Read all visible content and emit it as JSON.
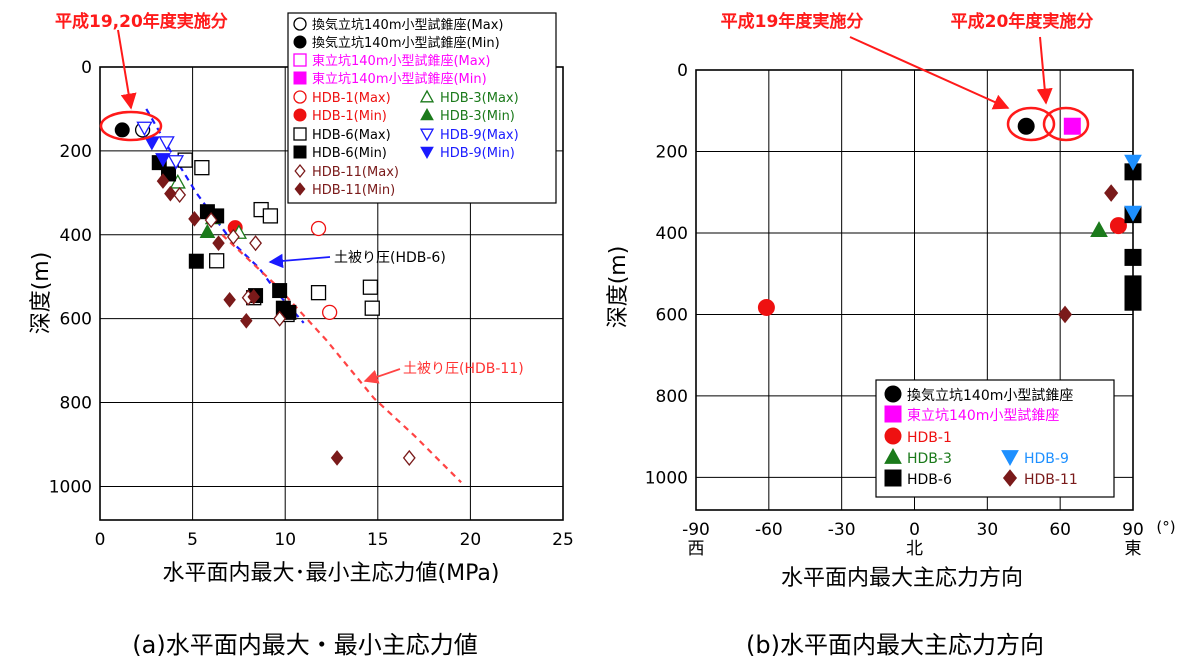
{
  "chart_data": [
    {
      "type": "scatter",
      "xlabel": "水平面内最大･最小主応力値(MPa)",
      "ylabel": "深度(m)",
      "caption": "(a)水平面内最大・最小主応力値",
      "xlim": [
        0,
        25
      ],
      "ylim": [
        1080,
        0
      ],
      "xticks": [
        "0",
        "5",
        "10",
        "15",
        "20",
        "25"
      ],
      "yticks": [
        "0",
        "200",
        "400",
        "600",
        "800",
        "1000"
      ],
      "grid": true,
      "legend_position": "top-right",
      "annotation_top": "平成19,20年度実施分",
      "lines": [
        {
          "name": "土被り圧(HDB-6)",
          "color": "#1a1aff",
          "style": "dashed",
          "points": [
            [
              2.5,
              100
            ],
            [
              3.8,
              200
            ],
            [
              5.2,
              300
            ],
            [
              7.2,
              420
            ],
            [
              8.6,
              480
            ],
            [
              9.6,
              540
            ],
            [
              11.0,
              610
            ]
          ]
        },
        {
          "name": "土被り圧(HDB-11)",
          "color": "#ff4444",
          "style": "dashed",
          "points": [
            [
              6.6,
              400
            ],
            [
              9.5,
              520
            ],
            [
              12.2,
              650
            ],
            [
              14.8,
              790
            ],
            [
              17.0,
              880
            ],
            [
              19.5,
              990
            ]
          ]
        }
      ],
      "series": [
        {
          "name": "換気立坑140m小型試錐座(Max)",
          "marker": "circle-open",
          "color": "#000000",
          "points": [
            [
              2.3,
              150
            ]
          ]
        },
        {
          "name": "換気立坑140m小型試錐座(Min)",
          "marker": "circle-filled",
          "color": "#000000",
          "points": [
            [
              1.2,
              150
            ]
          ]
        },
        {
          "name": "東立坑140m小型試錐座(Max)",
          "marker": "square-open",
          "color": "#ff00ff",
          "points": []
        },
        {
          "name": "東立坑140m小型試錐座(Min)",
          "marker": "square-filled",
          "color": "#ff00ff",
          "points": []
        },
        {
          "name": "HDB-1(Max)",
          "marker": "circle-open",
          "color": "#ee1111",
          "points": [
            [
              11.8,
              385
            ],
            [
              12.4,
              585
            ]
          ]
        },
        {
          "name": "HDB-1(Min)",
          "marker": "circle-filled",
          "color": "#ee1111",
          "points": [
            [
              7.3,
              383
            ]
          ]
        },
        {
          "name": "HDB-3(Max)",
          "marker": "triangle-open",
          "color": "#1b7a1b",
          "points": [
            [
              4.2,
              275
            ],
            [
              6.1,
              360
            ],
            [
              7.5,
              395
            ]
          ]
        },
        {
          "name": "HDB-3(Min)",
          "marker": "triangle-filled",
          "color": "#1b7a1b",
          "points": [
            [
              5.8,
              393
            ]
          ]
        },
        {
          "name": "HDB-6(Max)",
          "marker": "square-open",
          "color": "#000000",
          "points": [
            [
              4.6,
              222
            ],
            [
              5.5,
              240
            ],
            [
              8.7,
              340
            ],
            [
              9.2,
              355
            ],
            [
              6.3,
              462
            ],
            [
              11.8,
              538
            ],
            [
              14.6,
              525
            ],
            [
              14.7,
              575
            ],
            [
              8.3,
              550
            ],
            [
              10.1,
              590
            ]
          ]
        },
        {
          "name": "HDB-6(Min)",
          "marker": "square-filled",
          "color": "#000000",
          "points": [
            [
              3.2,
              228
            ],
            [
              3.7,
              255
            ],
            [
              5.8,
              345
            ],
            [
              6.3,
              355
            ],
            [
              5.2,
              463
            ],
            [
              9.7,
              533
            ],
            [
              8.4,
              545
            ],
            [
              9.9,
              575
            ],
            [
              10.2,
              585
            ]
          ]
        },
        {
          "name": "HDB-9(Max)",
          "marker": "triangle-down-open",
          "color": "#1a1aff",
          "points": [
            [
              2.4,
              145
            ],
            [
              3.6,
              180
            ],
            [
              4.1,
              225
            ]
          ]
        },
        {
          "name": "HDB-9(Min)",
          "marker": "triangle-down-filled",
          "color": "#1a1aff",
          "points": [
            [
              2.8,
              180
            ],
            [
              3.4,
              220
            ]
          ]
        },
        {
          "name": "HDB-11(Max)",
          "marker": "diamond-open",
          "color": "#7a1a1a",
          "points": [
            [
              4.3,
              305
            ],
            [
              6.0,
              365
            ],
            [
              7.2,
              405
            ],
            [
              8.4,
              420
            ],
            [
              9.7,
              600
            ],
            [
              16.7,
              932
            ],
            [
              8.0,
              550
            ]
          ]
        },
        {
          "name": "HDB-11(Min)",
          "marker": "diamond-filled",
          "color": "#7a1a1a",
          "points": [
            [
              3.4,
              272
            ],
            [
              3.8,
              302
            ],
            [
              5.1,
              362
            ],
            [
              6.4,
              420
            ],
            [
              8.3,
              548
            ],
            [
              7.0,
              555
            ],
            [
              7.9,
              605
            ],
            [
              12.8,
              932
            ]
          ]
        }
      ]
    },
    {
      "type": "scatter",
      "xlabel": "水平面内最大主応力方向",
      "ylabel": "深度(m)",
      "caption": "(b)水平面内最大主応力方向",
      "xlim": [
        -90,
        90
      ],
      "ylim": [
        1080,
        0
      ],
      "xticks": [
        "-90",
        "-60",
        "-30",
        "0",
        "30",
        "60",
        "90"
      ],
      "xtick_sublabels": {
        "-90": "西",
        "0": "北",
        "90": "東"
      },
      "x_unit": "(°)",
      "yticks": [
        "0",
        "200",
        "400",
        "600",
        "800",
        "1000"
      ],
      "grid": true,
      "legend_position": "bottom-right",
      "annotation_left": "平成19年度実施分",
      "annotation_right": "平成20年度実施分",
      "series": [
        {
          "name": "換気立坑140m小型試錐座",
          "marker": "circle-filled",
          "color": "#000000",
          "points": [
            [
              46,
              138
            ]
          ]
        },
        {
          "name": "東立坑140m小型試錐座",
          "marker": "square-filled",
          "color": "#ff00ff",
          "points": [
            [
              65,
              138
            ]
          ]
        },
        {
          "name": "HDB-1",
          "marker": "circle-filled",
          "color": "#ee1111",
          "points": [
            [
              -61,
              583
            ],
            [
              84,
              382
            ]
          ]
        },
        {
          "name": "HDB-3",
          "marker": "triangle-filled",
          "color": "#1b7a1b",
          "points": [
            [
              76,
              393
            ]
          ]
        },
        {
          "name": "HDB-6",
          "marker": "square-filled",
          "color": "#000000",
          "points": [
            [
              90,
              250
            ],
            [
              90,
              355
            ],
            [
              90,
              460
            ],
            [
              90,
              525
            ],
            [
              90,
              545
            ],
            [
              90,
              570
            ]
          ]
        },
        {
          "name": "HDB-9",
          "marker": "triangle-down-filled",
          "color": "#1e90ff",
          "points": [
            [
              90,
              225
            ],
            [
              90,
              350
            ]
          ]
        },
        {
          "name": "HDB-11",
          "marker": "diamond-filled",
          "color": "#7a1a1a",
          "points": [
            [
              81,
              302
            ],
            [
              62,
              600
            ]
          ]
        }
      ]
    }
  ]
}
